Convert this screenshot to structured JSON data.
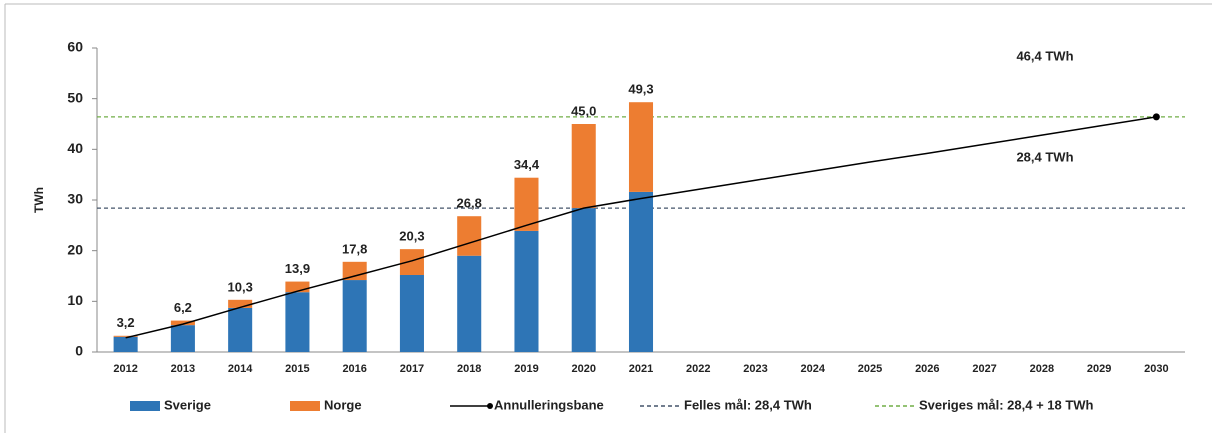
{
  "chart_data": {
    "type": "bar",
    "stacked": true,
    "y_label": "TWh",
    "categories": [
      "2012",
      "2013",
      "2014",
      "2015",
      "2016",
      "2017",
      "2018",
      "2019",
      "2020",
      "2021",
      "2022",
      "2023",
      "2024",
      "2025",
      "2026",
      "2027",
      "2028",
      "2029",
      "2030"
    ],
    "series": [
      {
        "name": "Sverige",
        "color": "#2e75b6",
        "type": "bar",
        "values": [
          3.0,
          5.3,
          8.7,
          11.8,
          14.2,
          15.2,
          19.0,
          23.9,
          28.4,
          31.6,
          null,
          null,
          null,
          null,
          null,
          null,
          null,
          null,
          null
        ]
      },
      {
        "name": "Norge",
        "color": "#ed7d31",
        "type": "bar",
        "values": [
          0.2,
          0.9,
          1.6,
          2.1,
          3.6,
          5.1,
          7.8,
          10.5,
          16.6,
          17.7,
          null,
          null,
          null,
          null,
          null,
          null,
          null,
          null,
          null
        ]
      },
      {
        "name": "Annulleringsbane",
        "color": "#000000",
        "type": "line",
        "values": [
          2.8,
          5.5,
          8.8,
          12.0,
          15.0,
          18.0,
          21.5,
          25.0,
          28.4,
          30.3,
          32.1,
          33.9,
          35.7,
          37.5,
          39.2,
          41.0,
          42.8,
          44.6,
          46.4
        ]
      }
    ],
    "totals": [
      3.2,
      6.2,
      10.3,
      13.9,
      17.8,
      20.3,
      26.8,
      34.4,
      45.0,
      49.3
    ],
    "total_labels": [
      "3,2",
      "6,2",
      "10,3",
      "13,9",
      "17,8",
      "20,3",
      "26,8",
      "34,4",
      "45,0",
      "49,3"
    ],
    "reference_lines": [
      {
        "name": "Felles mål: 28,4 TWh",
        "color": "#44546a",
        "value": 28.4,
        "annotation": "28,4 TWh"
      },
      {
        "name": "Sveriges mål: 28,4 + 18 TWh",
        "color": "#70ad47",
        "value": 46.4,
        "annotation": "46,4 TWh"
      }
    ],
    "ylim": [
      0,
      60
    ],
    "yticks": [
      0,
      10,
      20,
      30,
      40,
      50,
      60
    ],
    "grid": false
  }
}
